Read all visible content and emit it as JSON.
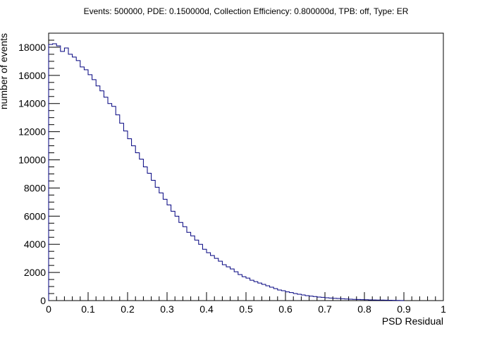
{
  "chart_data": {
    "type": "bar",
    "title": "Events: 500000, PDE: 0.150000d, Collection Efficiency: 0.800000d, TPB: off, Type: ER",
    "xlabel": "PSD Residual",
    "ylabel": "number of events",
    "xlim": [
      0,
      1
    ],
    "ylim": [
      0,
      19000
    ],
    "grid": false,
    "x_ticks": [
      0,
      0.1,
      0.2,
      0.3,
      0.4,
      0.5,
      0.6,
      0.7,
      0.8,
      0.9,
      1
    ],
    "x_tick_labels": [
      "0",
      "0.1",
      "0.2",
      "0.3",
      "0.4",
      "0.5",
      "0.6",
      "0.7",
      "0.8",
      "0.9",
      "1"
    ],
    "y_ticks": [
      0,
      2000,
      4000,
      6000,
      8000,
      10000,
      12000,
      14000,
      16000,
      18000
    ],
    "y_tick_labels": [
      "0",
      "2000",
      "4000",
      "6000",
      "8000",
      "10000",
      "12000",
      "14000",
      "16000",
      "18000"
    ],
    "bin_width": 0.01,
    "series": [
      {
        "color": "#00007f",
        "bin_edges_start": 0,
        "values": [
          18200,
          18250,
          18100,
          17700,
          17950,
          17500,
          17300,
          17050,
          16600,
          16400,
          16050,
          15700,
          15250,
          14900,
          14450,
          14000,
          13800,
          13200,
          12600,
          12050,
          11500,
          11000,
          10500,
          10050,
          9500,
          9050,
          8550,
          8050,
          7650,
          7200,
          6800,
          6350,
          6000,
          5550,
          5250,
          4850,
          4600,
          4300,
          4000,
          3650,
          3400,
          3200,
          3000,
          2800,
          2550,
          2400,
          2250,
          2050,
          1850,
          1700,
          1600,
          1450,
          1350,
          1250,
          1150,
          1050,
          950,
          850,
          750,
          700,
          620,
          570,
          500,
          450,
          400,
          350,
          320,
          290,
          250,
          230,
          200,
          180,
          160,
          150,
          130,
          110,
          100,
          90,
          80,
          70,
          60,
          50,
          45,
          40,
          35,
          30,
          25,
          20,
          15,
          5
        ]
      }
    ]
  }
}
